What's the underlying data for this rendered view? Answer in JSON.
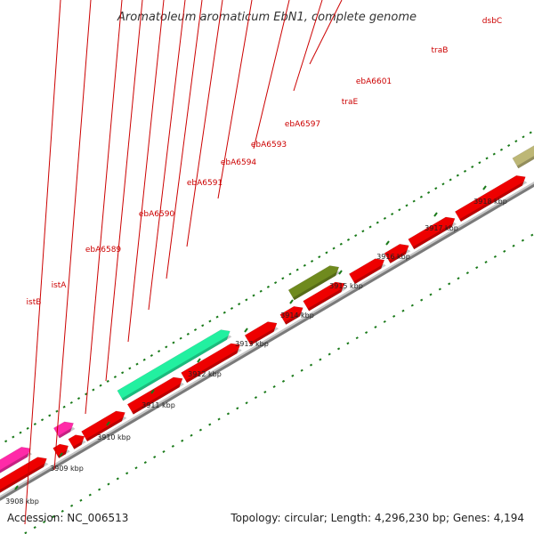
{
  "title": "Aromatoleum aromaticum EbN1, complete genome",
  "footer": {
    "accession": "Accession: NC_006513",
    "summary": "Topology: circular; Length: 4,296,230 bp; Genes: 4,194"
  },
  "colors": {
    "cds": "#ee0000",
    "label": "#cc0000",
    "backbone": "#9a9a9a",
    "tick": "#1a7a1a",
    "magenta": "#ff2aa8",
    "teal": "#22f0a0",
    "olive": "#6f8a1e",
    "khaki": "#bdb776"
  },
  "ticks": [
    "3908 kbp",
    "3909 kbp",
    "3910 kbp",
    "3911 kbp",
    "3912 kbp",
    "3913 kbp",
    "3914 kbp",
    "3915 kbp",
    "3916 kbp",
    "3917 kbp",
    "3918 kbp"
  ],
  "gene_labels": [
    "istB",
    "istA",
    "ebA6589",
    "ebA6590",
    "ebA6591",
    "ebA6594",
    "ebA6593",
    "ebA6597",
    "traE",
    "ebA6601",
    "traB",
    "dsbC"
  ]
}
